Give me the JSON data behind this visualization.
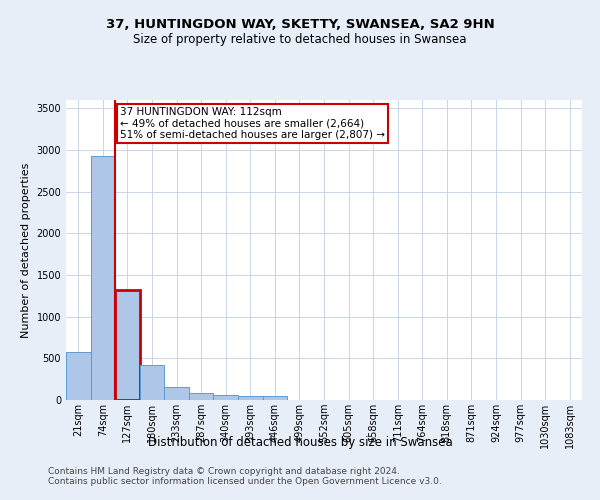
{
  "title1": "37, HUNTINGDON WAY, SKETTY, SWANSEA, SA2 9HN",
  "title2": "Size of property relative to detached houses in Swansea",
  "xlabel": "Distribution of detached houses by size in Swansea",
  "ylabel": "Number of detached properties",
  "categories": [
    "21sqm",
    "74sqm",
    "127sqm",
    "180sqm",
    "233sqm",
    "287sqm",
    "340sqm",
    "393sqm",
    "446sqm",
    "499sqm",
    "552sqm",
    "605sqm",
    "658sqm",
    "711sqm",
    "764sqm",
    "818sqm",
    "871sqm",
    "924sqm",
    "977sqm",
    "1030sqm",
    "1083sqm"
  ],
  "values": [
    575,
    2930,
    1320,
    415,
    155,
    80,
    55,
    50,
    50,
    5,
    0,
    0,
    0,
    0,
    0,
    0,
    0,
    0,
    0,
    0,
    0
  ],
  "bar_color": "#aec6e8",
  "bar_edge_color": "#5b9bd5",
  "highlight_bar_index": 2,
  "highlight_color": "#cc0000",
  "highlight_line_color": "#cc0000",
  "annotation_text": "37 HUNTINGDON WAY: 112sqm\n← 49% of detached houses are smaller (2,664)\n51% of semi-detached houses are larger (2,807) →",
  "annotation_box_color": "#ffffff",
  "annotation_box_edge_color": "#cc0000",
  "ylim": [
    0,
    3600
  ],
  "yticks": [
    0,
    500,
    1000,
    1500,
    2000,
    2500,
    3000,
    3500
  ],
  "footer1": "Contains HM Land Registry data © Crown copyright and database right 2024.",
  "footer2": "Contains public sector information licensed under the Open Government Licence v3.0.",
  "bg_color": "#e8eef8",
  "plot_bg_color": "#ffffff",
  "grid_color": "#c8d4e8",
  "title1_fontsize": 9.5,
  "title2_fontsize": 8.5,
  "xlabel_fontsize": 8.5,
  "ylabel_fontsize": 8,
  "tick_fontsize": 7,
  "annotation_fontsize": 7.5,
  "footer_fontsize": 6.5
}
